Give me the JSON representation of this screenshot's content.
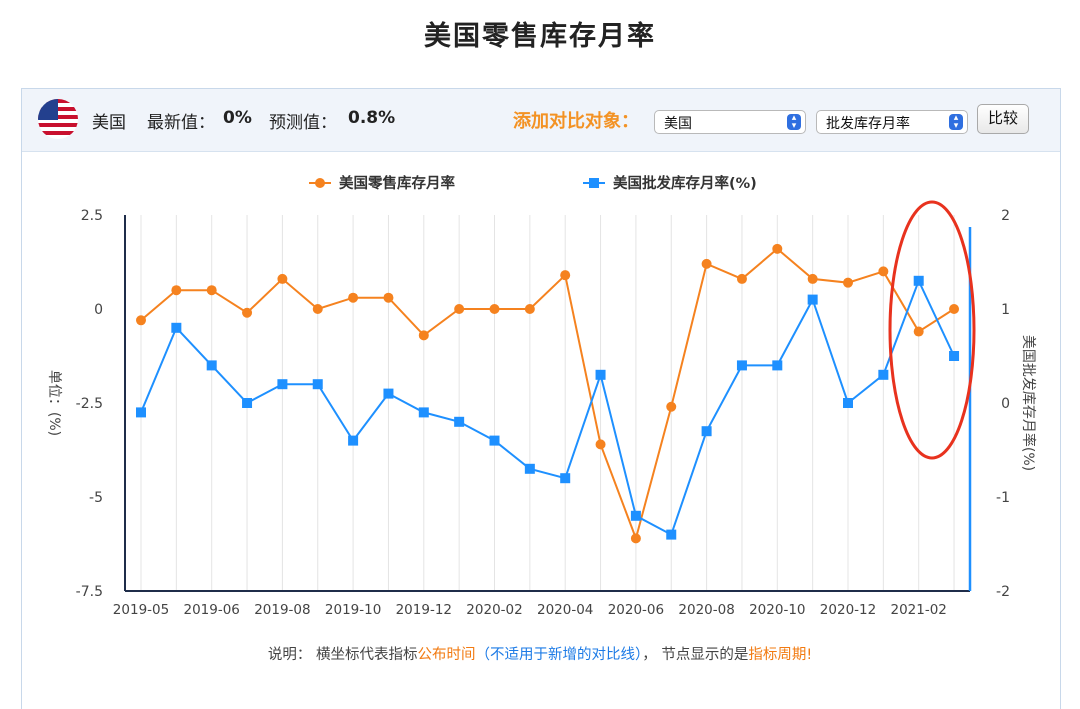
{
  "page": {
    "title": "美国零售库存月率"
  },
  "header": {
    "country": "美国",
    "latest_label": "最新值：",
    "latest_value": "0%",
    "forecast_label": "预测值：",
    "forecast_value": "0.8%",
    "compare_title": "添加对比对象：",
    "country_select": "美国",
    "indicator_select": "批发库存月率",
    "compare_button": "比较"
  },
  "note": {
    "prefix": "说明：  横坐标代表指标",
    "publish_time": "公布时间",
    "paren": "（不适用于新增的对比线）",
    "middle": "，  节点显示的是",
    "period": "指标周期!"
  },
  "colors": {
    "retail": "#f5821f",
    "wholesale": "#1e90ff",
    "highlight_ellipse": "#e8321e",
    "compare_title": "#f39224"
  },
  "chart_data": {
    "type": "line",
    "x_tick_labels": [
      "2019-05",
      "2019-06",
      "2019-08",
      "2019-10",
      "2019-12",
      "2020-02",
      "2020-04",
      "2020-06",
      "2020-08",
      "2020-10",
      "2020-12",
      "2021-02"
    ],
    "y_left": {
      "label": "单位：(%)",
      "ticks": [
        "2.5",
        "0",
        "-2.5",
        "-5",
        "-7.5"
      ],
      "range": [
        -7.5,
        2.5
      ]
    },
    "y_right": {
      "label": "美国批发库存月率(%)",
      "ticks": [
        "2",
        "1",
        "0",
        "-1",
        "-2"
      ],
      "range": [
        -2,
        2
      ]
    },
    "legend_position": "top-center",
    "grid": "vertical",
    "series": [
      {
        "name": "美国零售库存月率",
        "axis": "left",
        "marker": "circle",
        "values": [
          -0.3,
          0.5,
          0.5,
          -0.1,
          0.8,
          0,
          0.3,
          0.3,
          -0.7,
          0,
          0,
          0,
          0.9,
          -3.6,
          -6.1,
          -2.6,
          1.2,
          0.8,
          1.6,
          0.8,
          0.7,
          1.0,
          -0.6,
          0
        ]
      },
      {
        "name": "美国批发库存月率(%)",
        "axis": "right",
        "marker": "square",
        "values": [
          -0.1,
          0.8,
          0.4,
          0,
          0.2,
          0.2,
          -0.4,
          0.1,
          -0.1,
          -0.2,
          -0.4,
          -0.7,
          -0.8,
          0.3,
          -1.2,
          -1.4,
          -0.3,
          0.4,
          0.4,
          1.1,
          0,
          0.3,
          1.3,
          0.5
        ]
      }
    ]
  }
}
